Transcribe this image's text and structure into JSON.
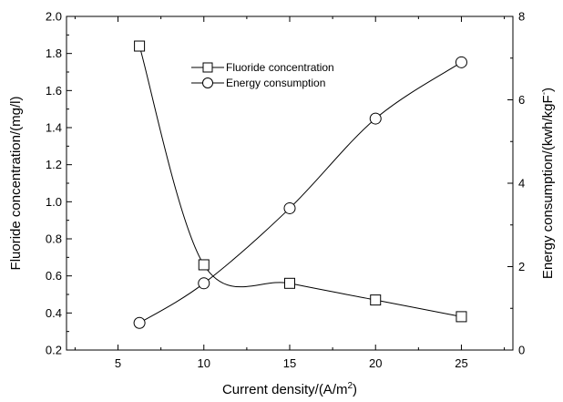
{
  "chart_data": {
    "type": "line",
    "xlabel": "Current density/(A/m",
    "xlabel_sup": "2",
    "xlabel_end": ")",
    "ylabel_left": "Fluoride concentration/(mg/l)",
    "ylabel_right": "Energy consumption/(kwh/kgF",
    "ylabel_right_sup": "-",
    "ylabel_right_end": ")",
    "xlim": [
      2,
      28
    ],
    "ylim_left": [
      0.2,
      2.0
    ],
    "ylim_right": [
      0,
      8
    ],
    "x_ticks": [
      5,
      10,
      15,
      20,
      25
    ],
    "x_tick_labels": [
      "5",
      "10",
      "15",
      "20",
      "25"
    ],
    "y_left_ticks": [
      0.2,
      0.4,
      0.6,
      0.8,
      1.0,
      1.2,
      1.4,
      1.6,
      1.8,
      2.0
    ],
    "y_left_tick_labels": [
      "0.2",
      "0.4",
      "0.6",
      "0.8",
      "1.0",
      "1.2",
      "1.4",
      "1.6",
      "1.8",
      "2.0"
    ],
    "y_right_ticks": [
      0,
      2,
      4,
      6,
      8
    ],
    "y_right_tick_labels": [
      "0",
      "2",
      "4",
      "6",
      "8"
    ],
    "grid": false,
    "legend_position": "top-center",
    "series": [
      {
        "name": "Fluoride concentration",
        "axis": "left",
        "marker": "square",
        "x": [
          6.25,
          10,
          15,
          20,
          25
        ],
        "values": [
          1.84,
          0.66,
          0.56,
          0.47,
          0.38
        ]
      },
      {
        "name": "Energy consumption",
        "axis": "right",
        "marker": "circle",
        "x": [
          6.25,
          10,
          15,
          20,
          25
        ],
        "values": [
          0.65,
          1.6,
          3.4,
          5.55,
          6.9
        ]
      }
    ],
    "colors": {
      "line": "#000000",
      "marker_fill": "#ffffff"
    }
  }
}
